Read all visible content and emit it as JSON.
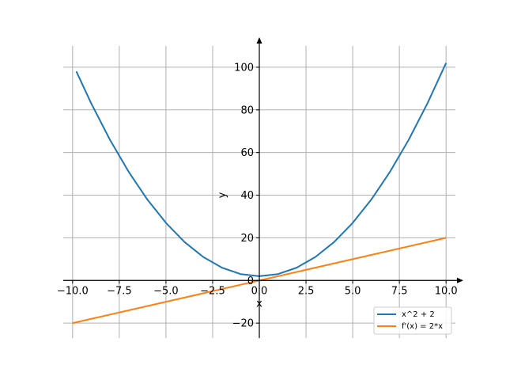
{
  "chart_data": {
    "type": "line",
    "xlabel": "x",
    "ylabel": "y",
    "xlim": [
      -10.5,
      10.5
    ],
    "ylim": [
      -27,
      110
    ],
    "x_ticks": [
      -10,
      -7.5,
      -5,
      -2.5,
      0,
      2.5,
      5,
      7.5,
      10
    ],
    "x_tick_labels": [
      "−10.0",
      "−7.5",
      "−5.0",
      "−2.5",
      "0.0",
      "2.5",
      "5.0",
      "7.5",
      "10.0"
    ],
    "y_ticks": [
      -20,
      0,
      20,
      40,
      60,
      80,
      100
    ],
    "y_tick_labels": [
      "−20",
      "0",
      "20",
      "40",
      "60",
      "80",
      "100"
    ],
    "grid": true,
    "legend_position": "bottom-right",
    "series": [
      {
        "name": "x^2 + 2",
        "color": "#1f77b4",
        "x": [
          -9.8,
          -9,
          -8,
          -7,
          -6,
          -5,
          -4,
          -3,
          -2,
          -1,
          0,
          1,
          2,
          3,
          4,
          5,
          6,
          7,
          8,
          9,
          10
        ],
        "values": [
          98.04,
          83,
          66,
          51,
          38,
          27,
          18,
          11,
          6,
          3,
          2,
          3,
          6,
          11,
          18,
          27,
          38,
          51,
          66,
          83,
          102
        ]
      },
      {
        "name": "f'(x) = 2*x",
        "color": "#ff7f0e",
        "x": [
          -10,
          10
        ],
        "values": [
          -20,
          20
        ]
      }
    ]
  }
}
